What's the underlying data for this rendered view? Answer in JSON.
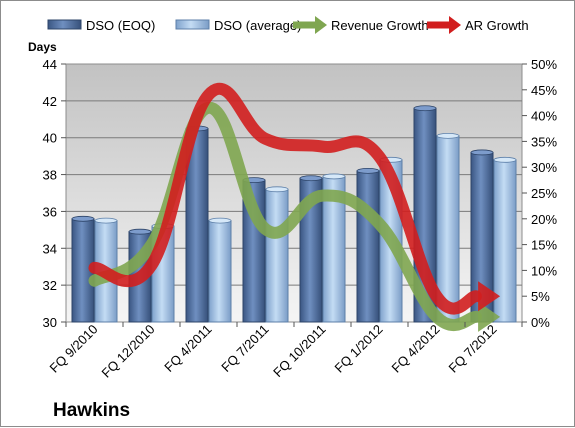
{
  "chart_data": {
    "type": "bar",
    "title": "",
    "company_label": "Hawkins",
    "y_left_label": "Days",
    "y_left_lim": [
      30,
      44
    ],
    "y_left_ticks": [
      "30",
      "32",
      "34",
      "36",
      "38",
      "40",
      "42",
      "44"
    ],
    "y_right_lim": [
      0,
      0.5
    ],
    "y_right_ticks": [
      "0%",
      "5%",
      "10%",
      "15%",
      "20%",
      "25%",
      "30%",
      "35%",
      "40%",
      "45%",
      "50%"
    ],
    "categories": [
      "FQ 9/2010",
      "FQ 12/2010",
      "FQ 4/2011",
      "FQ 7/2011",
      "FQ 10/2011",
      "FQ 1/2012",
      "FQ 4/2012",
      "FQ 7/2012"
    ],
    "legend_position": "top",
    "grid": true,
    "series": [
      {
        "name": "DSO (EOQ)",
        "type": "bar",
        "axis": "left",
        "color": "#4f6d9c",
        "values": [
          35.6,
          34.9,
          40.5,
          37.7,
          37.8,
          38.2,
          41.6,
          39.2
        ]
      },
      {
        "name": "DSO (average)",
        "type": "bar",
        "axis": "left",
        "color": "#9dbde3",
        "values": [
          35.5,
          35.2,
          35.5,
          37.2,
          37.9,
          38.8,
          40.1,
          38.8
        ]
      },
      {
        "name": "Revenue Growth",
        "type": "line",
        "axis": "right",
        "color": "#7fa650",
        "values": [
          0.08,
          0.15,
          0.415,
          0.18,
          0.245,
          0.19,
          0.01,
          0.01
        ]
      },
      {
        "name": "AR Growth",
        "type": "line",
        "axis": "right",
        "color": "#d11e1e",
        "values": [
          0.105,
          0.11,
          0.44,
          0.355,
          0.34,
          0.32,
          0.05,
          0.05
        ]
      }
    ]
  }
}
